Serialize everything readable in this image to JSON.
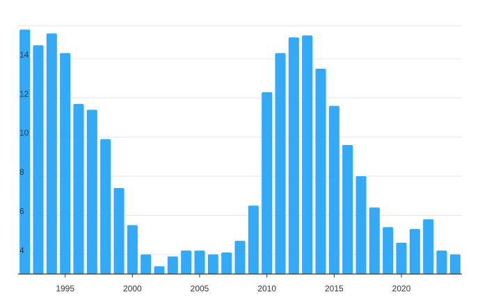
{
  "chart_data": {
    "type": "bar",
    "title": "",
    "xlabel": "",
    "ylabel": "",
    "categories": [
      1992,
      1993,
      1994,
      1995,
      1996,
      1997,
      1998,
      1999,
      2000,
      2001,
      2002,
      2003,
      2004,
      2005,
      2006,
      2007,
      2008,
      2009,
      2010,
      2011,
      2012,
      2013,
      2014,
      2015,
      2016,
      2017,
      2018,
      2019,
      2020,
      2021,
      2022,
      2023,
      2024
    ],
    "values": [
      15.5,
      14.7,
      15.3,
      14.3,
      11.7,
      11.4,
      9.9,
      7.4,
      5.5,
      4.0,
      3.4,
      3.9,
      4.2,
      4.2,
      4.0,
      4.1,
      4.7,
      6.5,
      12.3,
      14.3,
      15.1,
      15.2,
      13.5,
      11.6,
      9.6,
      8.0,
      6.4,
      5.4,
      4.6,
      5.3,
      5.8,
      4.2,
      4.0
    ],
    "ylim": [
      3.0,
      15.7
    ],
    "yticks": [
      4,
      6,
      8,
      10,
      12,
      14
    ],
    "xticks": [
      1995,
      2000,
      2005,
      2010,
      2015,
      2020
    ],
    "grid": true,
    "color": "#33aaf7",
    "legend": "none"
  }
}
